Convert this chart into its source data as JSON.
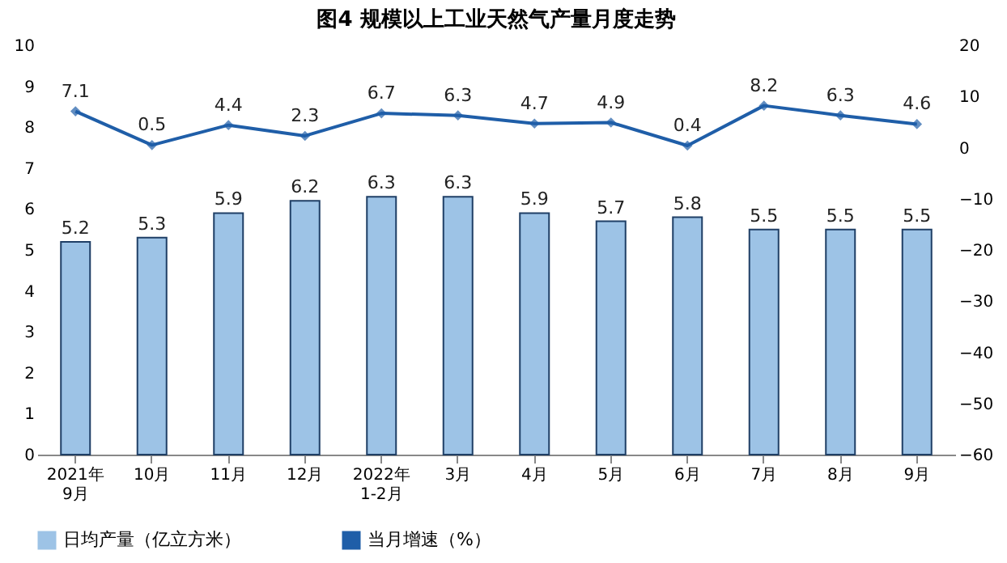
{
  "chart_data": {
    "type": "bar",
    "title": "图4  规模以上工业天然气产量月度走势",
    "categories": [
      "2021年\n9月",
      "10月",
      "11月",
      "12月",
      "2022年\n1-2月",
      "3月",
      "4月",
      "5月",
      "6月",
      "7月",
      "8月",
      "9月"
    ],
    "series": [
      {
        "name": "日均产量（亿立方米）",
        "color": "#9dc3e6",
        "values": [
          5.2,
          5.3,
          5.9,
          6.2,
          6.3,
          6.3,
          5.9,
          5.7,
          5.8,
          5.5,
          5.5,
          5.5
        ]
      },
      {
        "name": "当月增速（%）",
        "type": "line",
        "axis": "y2",
        "color": "#1f5ea8",
        "values": [
          7.1,
          0.5,
          4.4,
          2.3,
          6.7,
          6.3,
          4.7,
          4.9,
          0.4,
          8.2,
          6.3,
          4.6
        ]
      }
    ],
    "ylim": [
      0,
      10
    ],
    "yticks": [
      0,
      1,
      2,
      3,
      4,
      5,
      6,
      7,
      8,
      9,
      10
    ],
    "y2lim": [
      -60,
      20
    ],
    "y2ticks": [
      -60,
      -50,
      -40,
      -30,
      -20,
      -10,
      0,
      10,
      20
    ],
    "data_labels": true,
    "legend": "bottom",
    "grid": false,
    "marker": "diamond",
    "line_style": "solid"
  }
}
